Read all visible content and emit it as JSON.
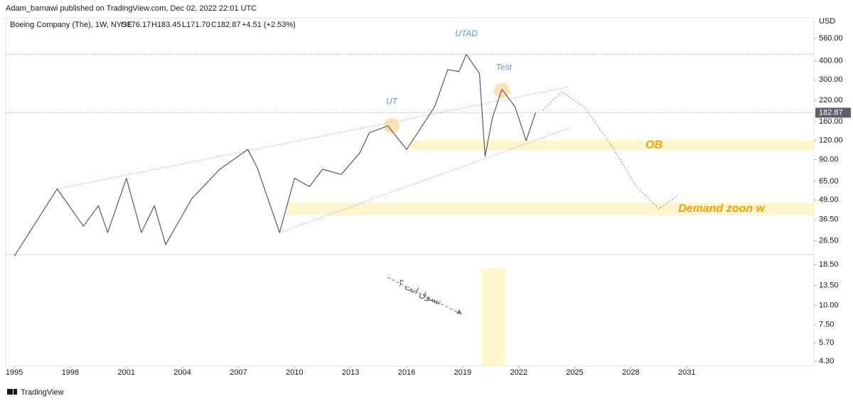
{
  "header": "Adam_barnawi published on TradingView.com, Dec 02, 2022 22:01 UTC",
  "footer": "TradingView",
  "chart_data": {
    "type": "line",
    "symbol_line": {
      "name": "Boeing Company (The), 1W, NYSE",
      "open": "O176.17",
      "high": "H183.45",
      "low": "L171.70",
      "close": "C182.87",
      "change": "+4.51 (+2.53%)"
    },
    "y_axis_unit": "USD",
    "log_scale": true,
    "color": "#555a66",
    "x": [
      1995.0,
      1997.3,
      1998.7,
      1999.5,
      2000.0,
      2001.0,
      2001.8,
      2002.5,
      2003.1,
      2004.5,
      2006.0,
      2007.5,
      2008.0,
      2009.2,
      2010.0,
      2010.8,
      2011.5,
      2012.5,
      2013.5,
      2014.0,
      2015.0,
      2016.0,
      2016.5,
      2017.5,
      2018.2,
      2018.8,
      2019.2,
      2019.9,
      2020.2,
      2020.6,
      2021.1,
      2021.8,
      2022.4,
      2022.9
    ],
    "values": [
      21,
      58,
      33,
      45,
      30,
      68,
      30,
      45,
      25,
      50,
      78,
      105,
      80,
      30,
      68,
      60,
      78,
      72,
      100,
      135,
      150,
      105,
      130,
      200,
      350,
      340,
      440,
      330,
      95,
      170,
      260,
      200,
      120,
      182.87
    ],
    "projection": {
      "x": [
        2023.3,
        2024.3,
        2025.5,
        2027.0,
        2028.3,
        2029.5,
        2030.5
      ],
      "values": [
        190,
        250,
        200,
        110,
        60,
        43,
        52
      ]
    },
    "trendlines": [
      {
        "x": [
          1997.3,
          2024.7
        ],
        "values": [
          58,
          270
        ]
      },
      {
        "x": [
          2009.2,
          2024.7
        ],
        "values": [
          30,
          145
        ]
      }
    ],
    "levels": [
      440,
      182.87
    ],
    "zones": [
      {
        "label": "OB",
        "x0": 2016.2,
        "y0": 104,
        "y1": 120
      },
      {
        "label": "Demand zoon w",
        "x0": 2009.6,
        "y0": 39,
        "y1": 47
      }
    ],
    "annotations": [
      {
        "text": "UT",
        "x": 2015.2,
        "value": 215
      },
      {
        "text": "UTAD",
        "x": 2019.2,
        "value": 600
      },
      {
        "text": "Test",
        "x": 2021.2,
        "value": 360
      }
    ],
    "highlights": [
      {
        "x": 2015.2,
        "value": 150
      },
      {
        "x": 2021.1,
        "value": 255
      }
    ],
    "volume_note": "تسوق انت ؟",
    "volume_highlight": {
      "x0": 2020.0,
      "x1": 2021.3
    },
    "xlim": [
      1994.54,
      2037.8
    ],
    "xticks": [
      1995,
      1998,
      2001,
      2004,
      2007,
      2010,
      2013,
      2016,
      2019,
      2022,
      2025,
      2028,
      2031
    ],
    "ylim": [
      4,
      765
    ],
    "yticks": [
      {
        "value": 560,
        "label": "560.00"
      },
      {
        "value": 400,
        "label": "400.00"
      },
      {
        "value": 300,
        "label": "300.00"
      },
      {
        "value": 220,
        "label": "220.00"
      },
      {
        "value": 160,
        "label": "160.00"
      },
      {
        "value": 120,
        "label": "120.00"
      },
      {
        "value": 90,
        "label": "90.00"
      },
      {
        "value": 65,
        "label": "65.00"
      },
      {
        "value": 49,
        "label": "49.00"
      },
      {
        "value": 36.5,
        "label": "36.50"
      },
      {
        "value": 26.5,
        "label": "26.50"
      },
      {
        "value": 18.5,
        "label": "18.50"
      },
      {
        "value": 13.5,
        "label": "13.50"
      },
      {
        "value": 10,
        "label": "10.00"
      },
      {
        "value": 7.5,
        "label": "7.50"
      },
      {
        "value": 5.7,
        "label": "5.70"
      },
      {
        "value": 4.3,
        "label": "4.30"
      }
    ]
  }
}
